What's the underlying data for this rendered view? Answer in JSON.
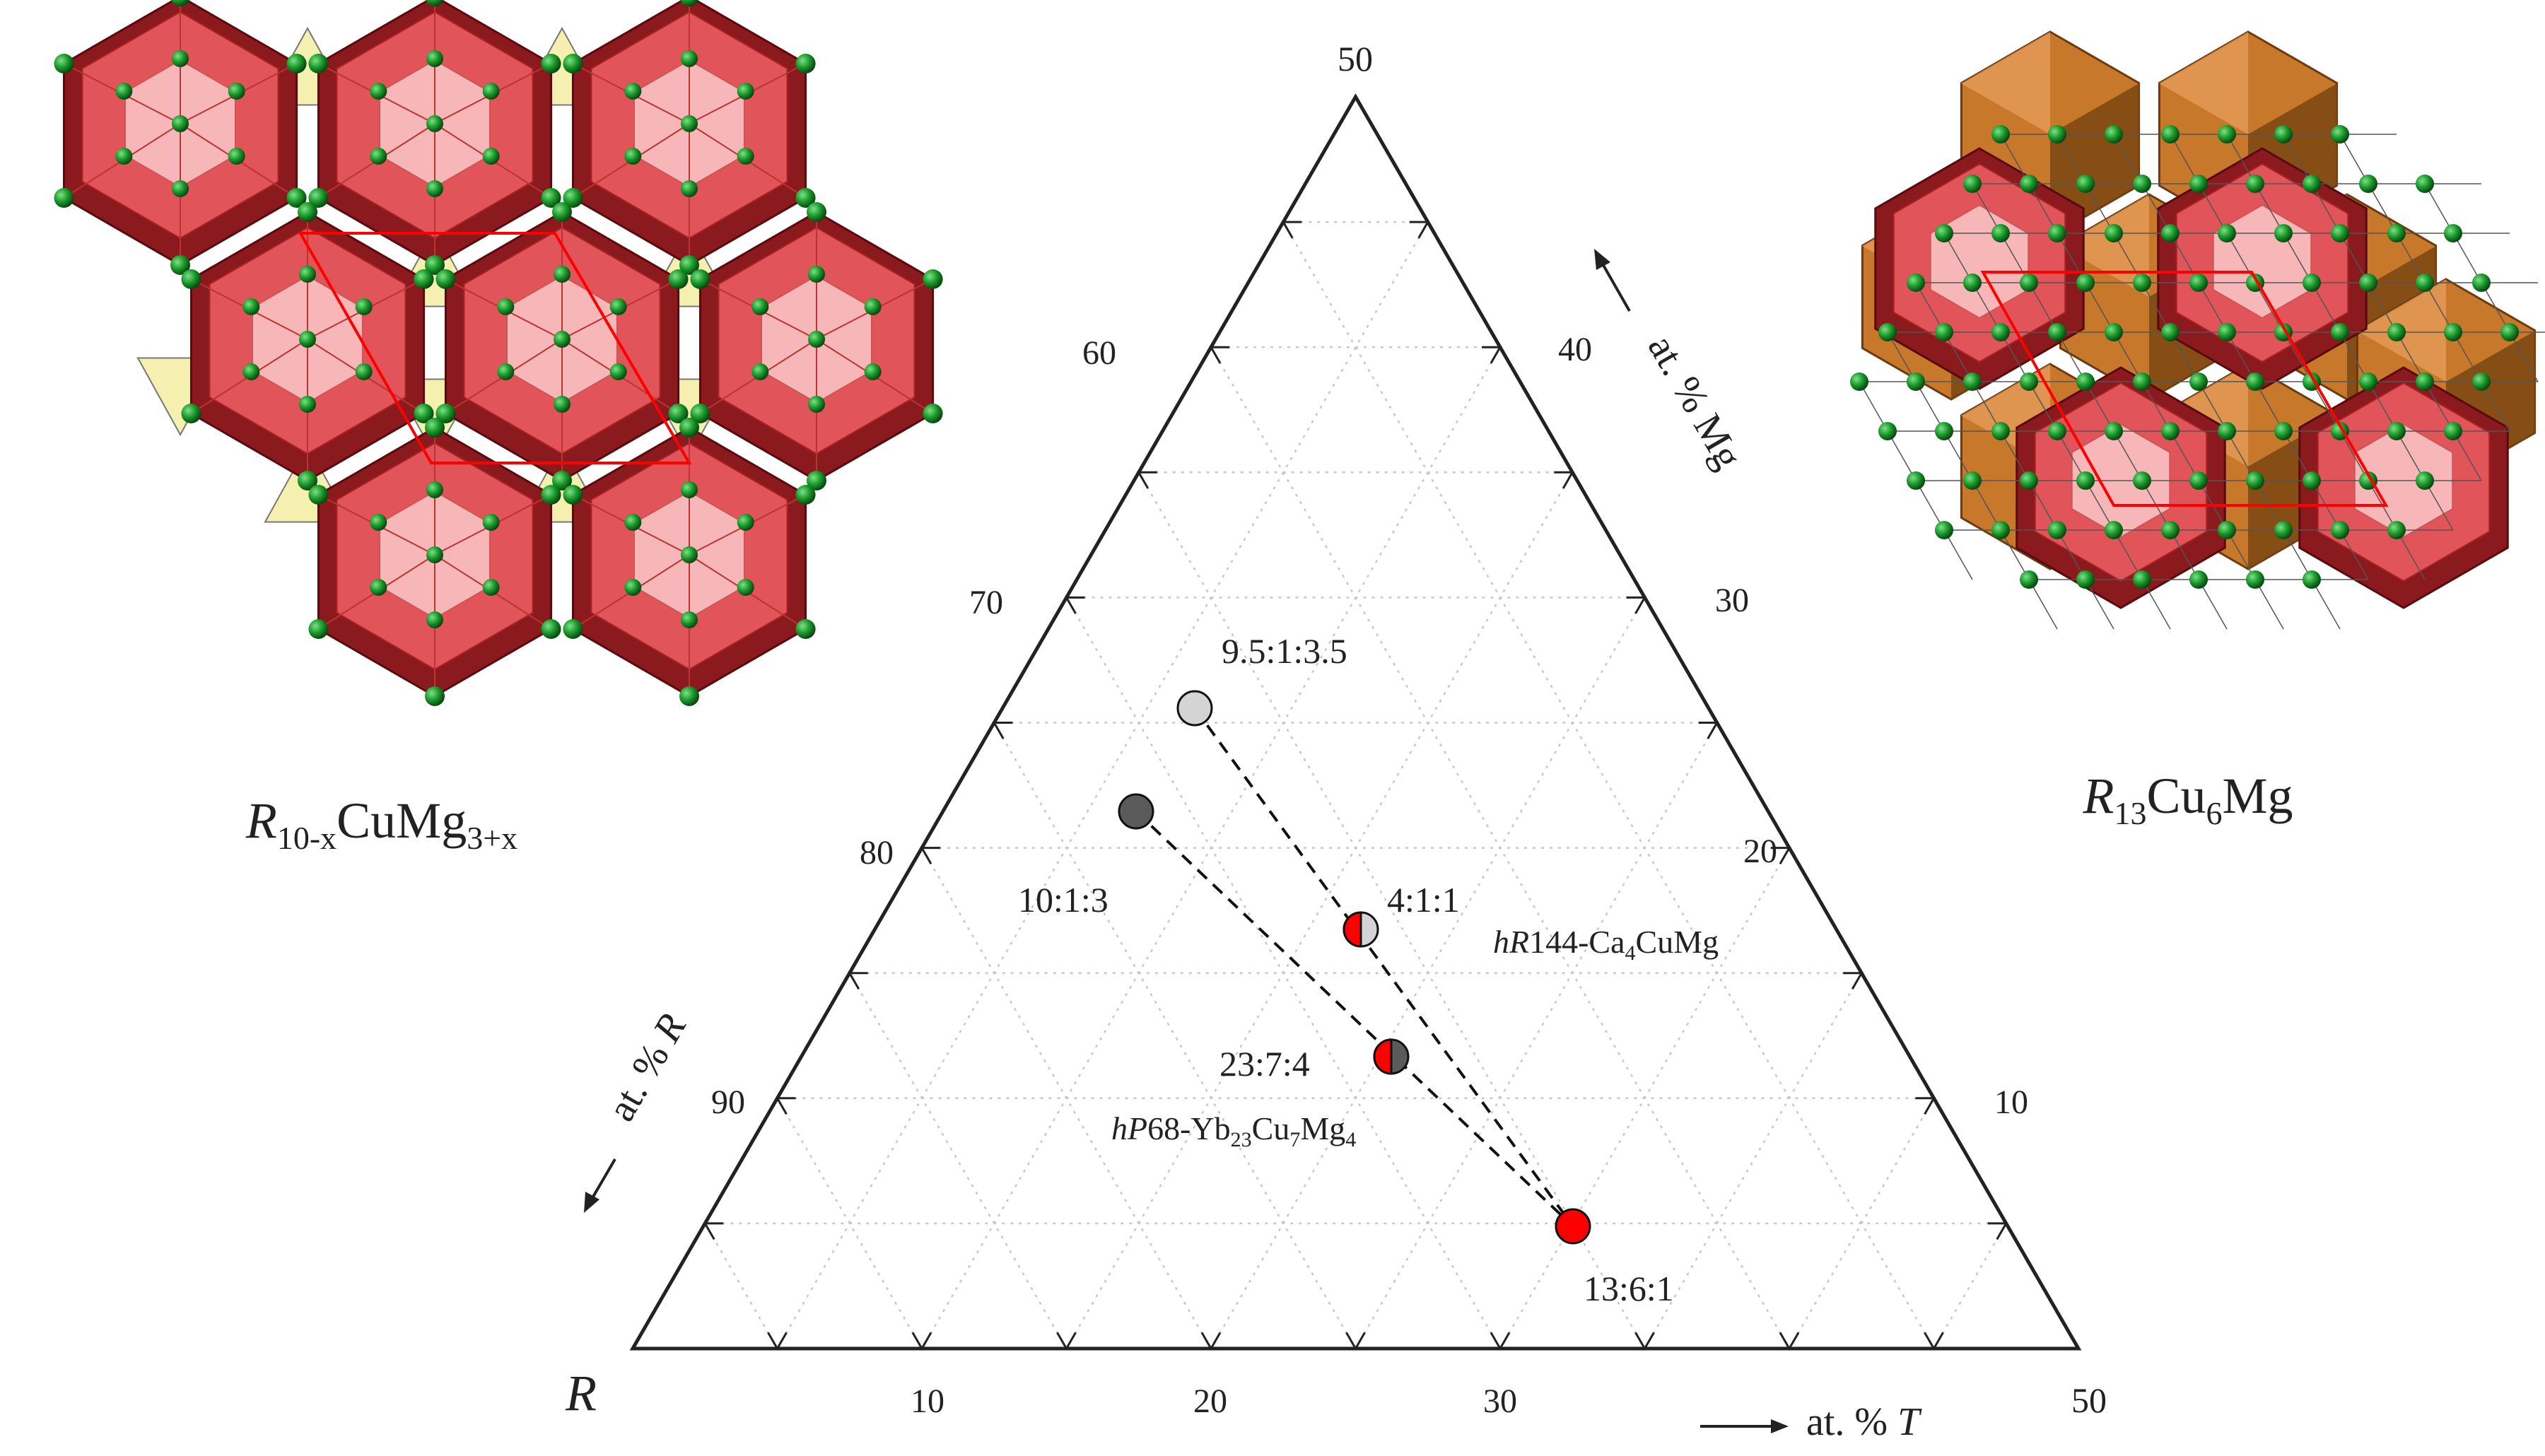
{
  "diagram": {
    "corners": {
      "r": "R",
      "mg_top": "50",
      "t_right": "50"
    },
    "axes": {
      "mg": {
        "label_prefix": "at. % ",
        "label_element": "Mg",
        "ticks": [
          "10",
          "20",
          "30",
          "40"
        ]
      },
      "r": {
        "label_prefix": "at. % ",
        "label_element": "R",
        "ticks": [
          "60",
          "70",
          "80",
          "90"
        ]
      },
      "t": {
        "label_prefix": "at. % ",
        "label_element": "T",
        "ticks": [
          "10",
          "20",
          "30"
        ]
      }
    },
    "points": [
      {
        "ratio": "9.5:1:3.5",
        "fill": "#d4d4d4",
        "style": "solid"
      },
      {
        "ratio": "10:1:3",
        "fill": "#5a5a5a",
        "style": "solid"
      },
      {
        "ratio": "4:1:1",
        "fill": "#d4d4d4",
        "style": "half-red"
      },
      {
        "ratio": "23:7:4",
        "fill": "#5a5a5a",
        "style": "half-red"
      },
      {
        "ratio": "13:6:1",
        "fill": "#ff0000",
        "style": "solid"
      }
    ],
    "phase_labels": {
      "ca": {
        "prefix": "hR",
        "text": "144-Ca",
        "sub1": "4",
        "text2": "CuMg",
        "sub2": ""
      },
      "yb": {
        "prefix": "hP",
        "text": "68-Yb",
        "sub1": "23",
        "text2": "Cu",
        "sub2": "7",
        "text3": "Mg",
        "sub3": "4"
      }
    },
    "colors": {
      "red": "#ff0000",
      "light_gray": "#d4d4d4",
      "dark_gray": "#5a5a5a",
      "grid": "#c8c8c8"
    }
  },
  "structures": {
    "left": {
      "italic": "R",
      "sub1": "10-x",
      "mid": "CuMg",
      "sub2": "3+x",
      "colors": {
        "poly": "#e0545a",
        "tri": "#f5f0b0",
        "atom": "#1a9a2a"
      }
    },
    "right": {
      "italic": "R",
      "sub1": "13",
      "mid": "Cu",
      "sub2": "6",
      "tail": "Mg",
      "colors": {
        "poly": "#e0545a",
        "orange": "#c8782a",
        "atom": "#1a9a2a"
      }
    }
  }
}
